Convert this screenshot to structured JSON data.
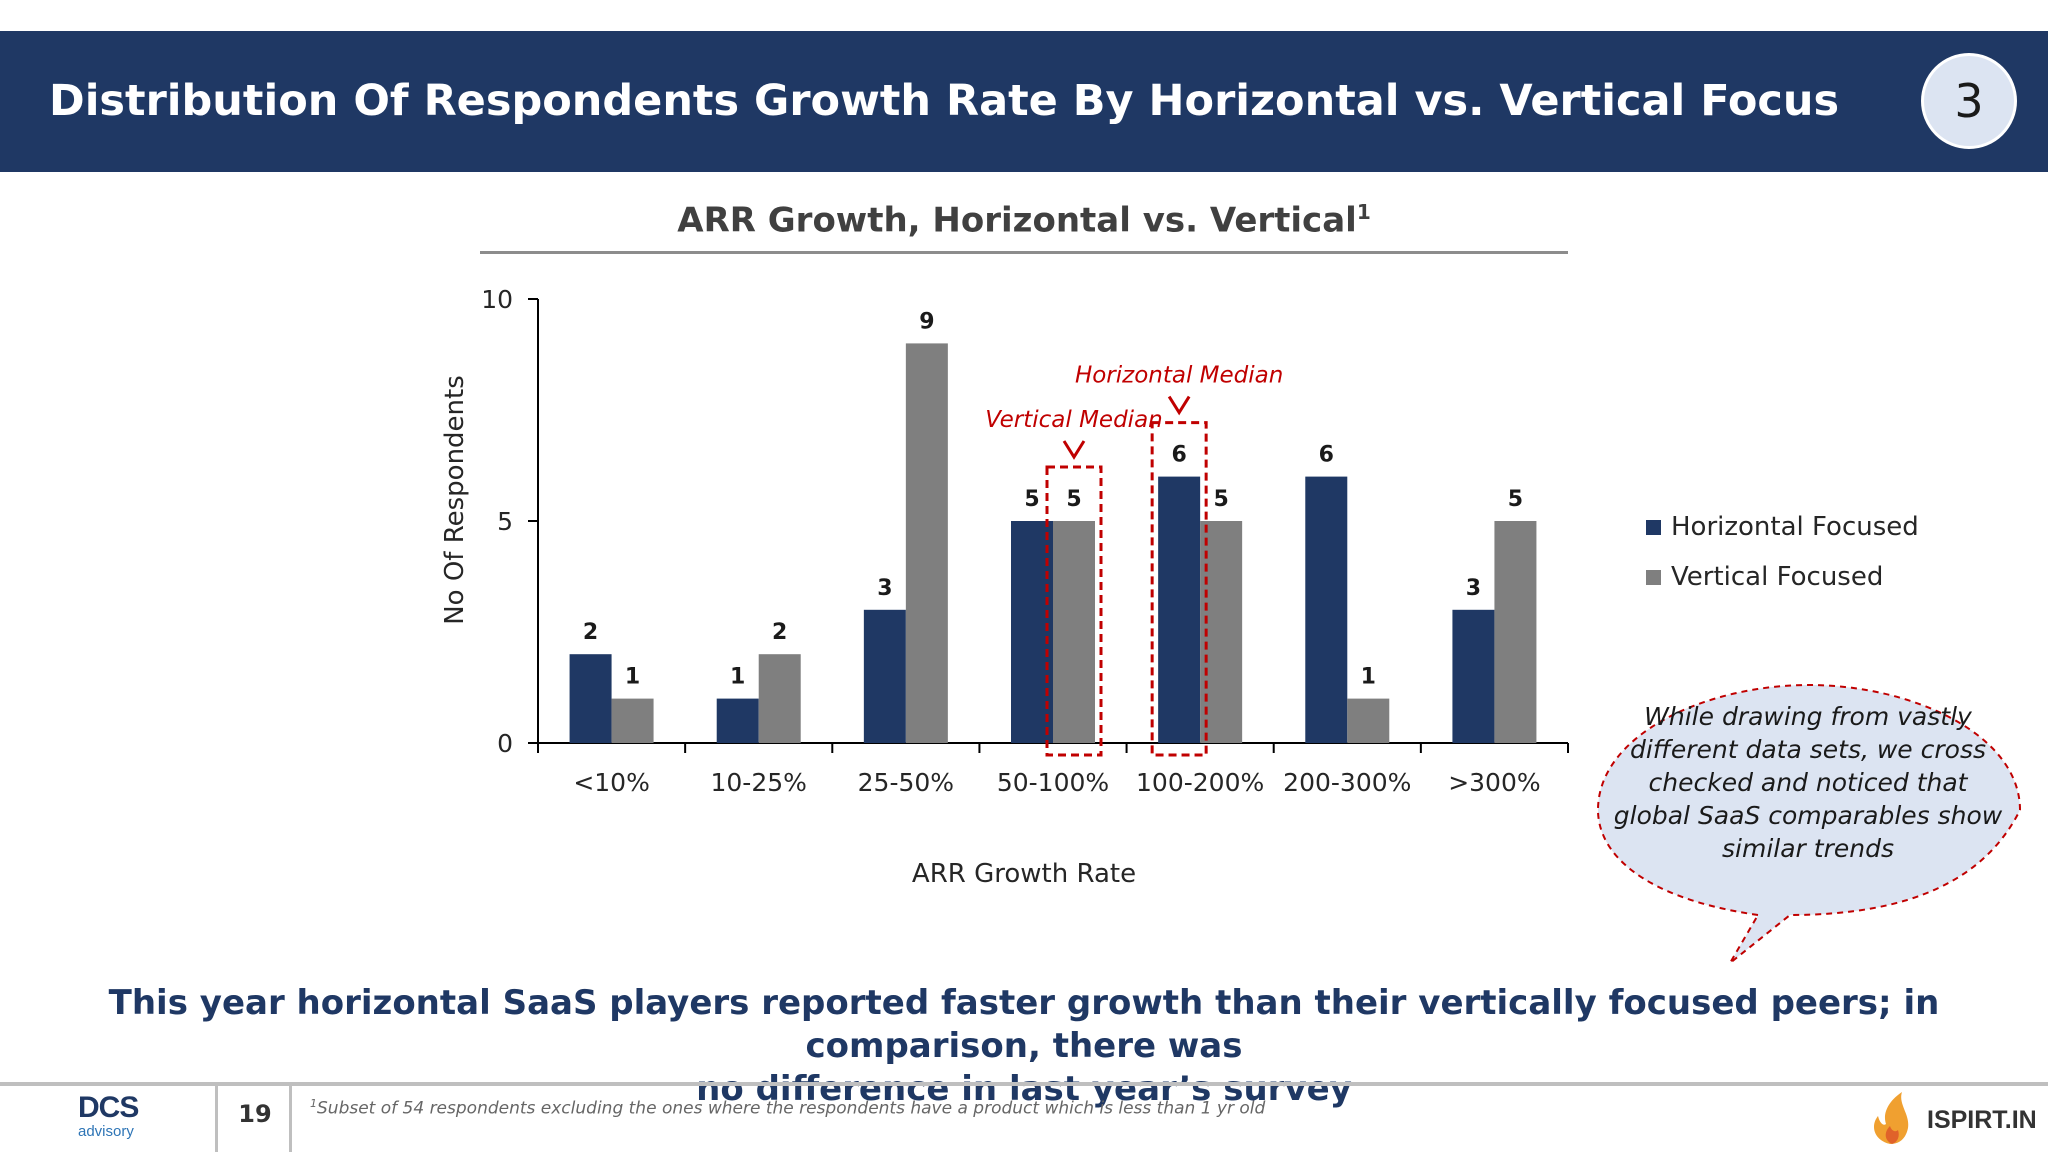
{
  "header": {
    "title": "Distribution Of Respondents Growth Rate By Horizontal vs. Vertical Focus",
    "section_number": "3",
    "background_color": "#1f3864"
  },
  "chart_data": {
    "type": "bar",
    "title": "ARR Growth, Horizontal vs. Vertical",
    "title_superscript": "1",
    "xlabel": "ARR Growth Rate",
    "ylabel": "No Of Respondents",
    "ylim": [
      0,
      10
    ],
    "yticks": [
      0,
      5,
      10
    ],
    "categories": [
      "<10%",
      "10-25%",
      "25-50%",
      "50-100%",
      "100-200%",
      "200-300%",
      ">300%"
    ],
    "series": [
      {
        "name": "Horizontal Focused",
        "color": "#1f3864",
        "values": [
          2,
          1,
          3,
          5,
          6,
          6,
          3
        ]
      },
      {
        "name": "Vertical Focused",
        "color": "#7f7f7f",
        "values": [
          1,
          2,
          9,
          5,
          5,
          1,
          5
        ]
      }
    ],
    "grid": false,
    "legend_position": "right",
    "annotations": [
      {
        "text": "Vertical Median",
        "series": "Vertical Focused",
        "category": "50-100%",
        "color": "#c00000"
      },
      {
        "text": "Horizontal Median",
        "series": "Horizontal Focused",
        "category": "100-200%",
        "color": "#c00000"
      }
    ]
  },
  "callout": {
    "text": "While drawing from vastly different data sets, we cross checked and noticed that global SaaS comparables show similar trends",
    "border_color": "#c00000",
    "fill_color": "#dce4f2"
  },
  "conclusion": {
    "line1": "This year horizontal SaaS players reported faster growth than their vertically focused peers; in comparison, there was",
    "line2": "no difference in last year’s survey"
  },
  "footer": {
    "logo_main": "DCS",
    "logo_sub": "advisory",
    "page_number": "19",
    "footnote_marker": "1",
    "footnote": "Subset of 54 respondents excluding the ones where the respondents have a product which is less than 1 yr old",
    "brand": "ISPIRT.IN"
  }
}
